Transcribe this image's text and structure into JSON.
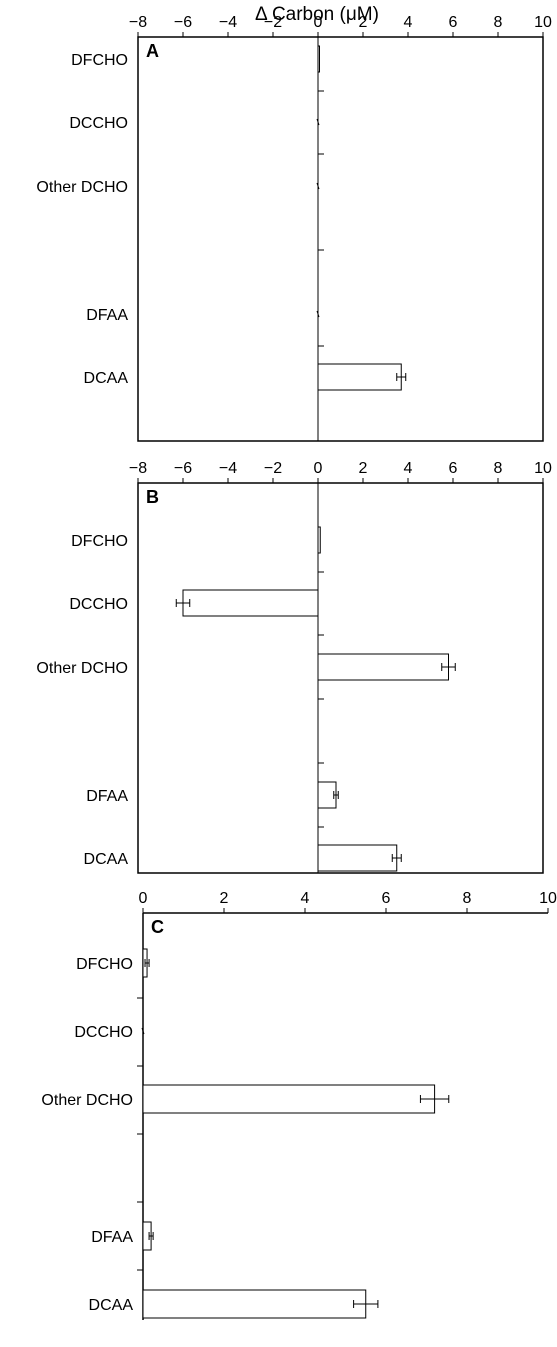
{
  "chart_data": [
    {
      "type": "bar",
      "orientation": "horizontal",
      "panel_label": "A",
      "xlabel": "Δ Carbon (μM)",
      "xlim": [
        -8,
        10
      ],
      "xticks": [
        -8,
        -6,
        -4,
        -2,
        0,
        2,
        4,
        6,
        8,
        10
      ],
      "categories": [
        "DFCHO",
        "DCCHO",
        "Other DCHO",
        "DFAA",
        "DCAA"
      ],
      "values": [
        0.05,
        0.0,
        0.0,
        0.0,
        3.7
      ],
      "errors": [
        0.0,
        0.0,
        0.0,
        0.0,
        0.2
      ]
    },
    {
      "type": "bar",
      "orientation": "horizontal",
      "panel_label": "B",
      "xlabel": "",
      "xlim": [
        -8,
        10
      ],
      "xticks": [
        -8,
        -6,
        -4,
        -2,
        0,
        2,
        4,
        6,
        8,
        10
      ],
      "categories": [
        "DFCHO",
        "DCCHO",
        "Other DCHO",
        "DFAA",
        "DCAA"
      ],
      "values": [
        0.1,
        -6.0,
        5.8,
        0.8,
        3.5
      ],
      "errors": [
        0.0,
        0.3,
        0.3,
        0.1,
        0.2
      ]
    },
    {
      "type": "bar",
      "orientation": "horizontal",
      "panel_label": "C",
      "xlabel": "",
      "xlim": [
        0,
        10
      ],
      "xticks": [
        0,
        2,
        4,
        6,
        8,
        10
      ],
      "categories": [
        "DFCHO",
        "DCCHO",
        "Other DCHO",
        "DFAA",
        "DCAA"
      ],
      "values": [
        0.1,
        0.0,
        7.2,
        0.2,
        5.5
      ],
      "errors": [
        0.05,
        0.0,
        0.35,
        0.05,
        0.3
      ]
    }
  ]
}
